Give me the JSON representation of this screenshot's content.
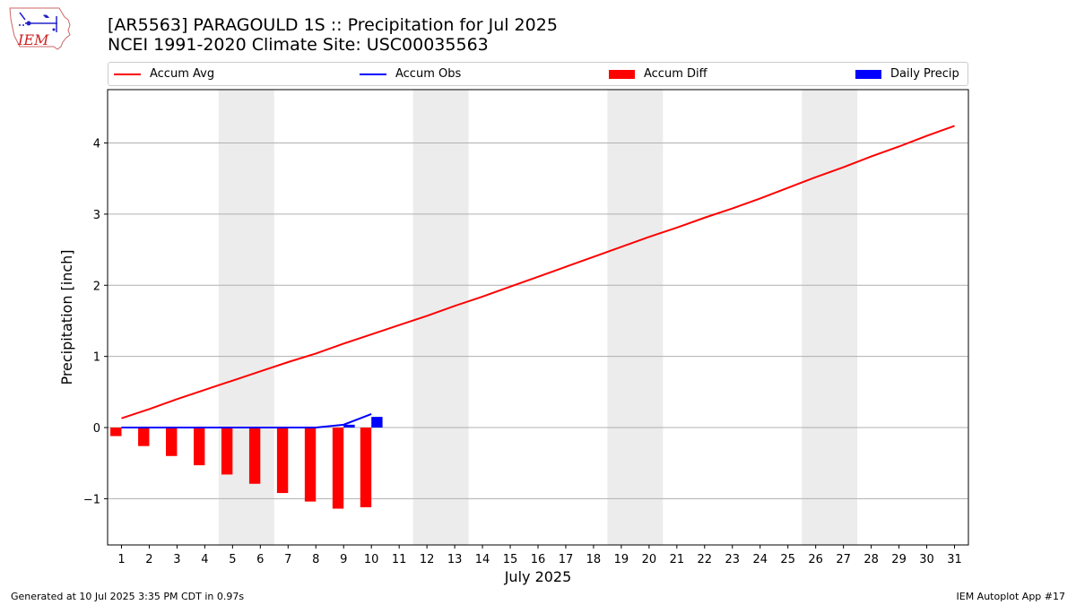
{
  "header": {
    "title_line1": "[AR5563] PARAGOULD 1S :: Precipitation for Jul 2025",
    "title_line2": "NCEI 1991-2020 Climate Site: USC00035563",
    "logo_text": "IEM"
  },
  "legend": {
    "items": [
      {
        "label": "Accum Avg",
        "color": "#ff0000",
        "kind": "line"
      },
      {
        "label": "Accum Obs",
        "color": "#0000ff",
        "kind": "line"
      },
      {
        "label": "Accum Diff",
        "color": "#ff0000",
        "kind": "box"
      },
      {
        "label": "Daily Precip",
        "color": "#0000ff",
        "kind": "box"
      }
    ]
  },
  "chart_data": {
    "type": "bar",
    "xlabel": "July 2025",
    "ylabel": "Precipitation [inch]",
    "xlim": [
      0.5,
      31.5
    ],
    "ylim": [
      -1.65,
      4.75
    ],
    "yticks": [
      -1,
      0,
      1,
      2,
      3,
      4
    ],
    "ytick_labels": [
      "−1",
      "0",
      "1",
      "2",
      "3",
      "4"
    ],
    "days": [
      1,
      2,
      3,
      4,
      5,
      6,
      7,
      8,
      9,
      10,
      11,
      12,
      13,
      14,
      15,
      16,
      17,
      18,
      19,
      20,
      21,
      22,
      23,
      24,
      25,
      26,
      27,
      28,
      29,
      30,
      31
    ],
    "weekend_days": [
      5,
      6,
      12,
      13,
      19,
      20,
      26,
      27
    ],
    "grid": "horizontal",
    "series": [
      {
        "name": "Accum Avg",
        "type": "line",
        "color": "#ff0000",
        "x": [
          1,
          2,
          3,
          4,
          5,
          6,
          7,
          8,
          9,
          10,
          11,
          12,
          13,
          14,
          15,
          16,
          17,
          18,
          19,
          20,
          21,
          22,
          23,
          24,
          25,
          26,
          27,
          28,
          29,
          30,
          31
        ],
        "values": [
          0.13,
          0.26,
          0.4,
          0.53,
          0.66,
          0.79,
          0.92,
          1.04,
          1.18,
          1.31,
          1.44,
          1.57,
          1.71,
          1.84,
          1.98,
          2.12,
          2.26,
          2.4,
          2.54,
          2.68,
          2.81,
          2.95,
          3.08,
          3.22,
          3.37,
          3.52,
          3.66,
          3.81,
          3.95,
          4.1,
          4.24
        ]
      },
      {
        "name": "Accum Obs",
        "type": "line",
        "color": "#0000ff",
        "x": [
          1,
          2,
          3,
          4,
          5,
          6,
          7,
          8,
          9,
          10
        ],
        "values": [
          0,
          0,
          0,
          0,
          0,
          0,
          0,
          0,
          0.04,
          0.19
        ]
      },
      {
        "name": "Accum Diff",
        "type": "bar",
        "color": "#ff0000",
        "x": [
          1,
          2,
          3,
          4,
          5,
          6,
          7,
          8,
          9,
          10
        ],
        "values": [
          -0.12,
          -0.26,
          -0.4,
          -0.53,
          -0.66,
          -0.79,
          -0.92,
          -1.04,
          -1.14,
          -1.12
        ]
      },
      {
        "name": "Daily Precip",
        "type": "bar",
        "color": "#0000ff",
        "x": [
          1,
          2,
          3,
          4,
          5,
          6,
          7,
          8,
          9,
          10
        ],
        "values": [
          0,
          0,
          0,
          0,
          0,
          0,
          0,
          0,
          0.04,
          0.15
        ]
      }
    ]
  },
  "footer": {
    "left": "Generated at 10 Jul 2025 3:35 PM CDT in 0.97s",
    "right": "IEM Autoplot App #17"
  }
}
